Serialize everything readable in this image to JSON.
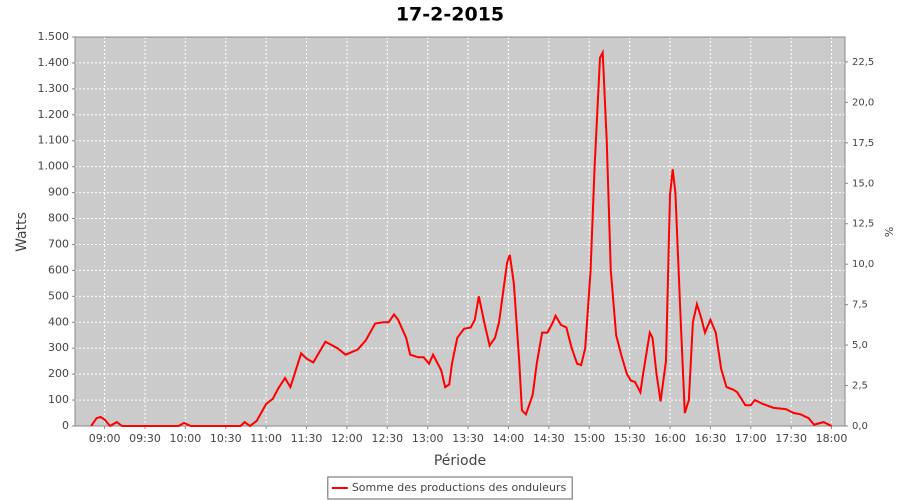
{
  "chart_data": {
    "type": "line",
    "title": "17-2-2015",
    "x_label": "Période",
    "y_label": "Watts",
    "y2_label": "%",
    "x": [
      "08:50",
      "08:54",
      "08:57",
      "09:00",
      "09:04",
      "09:09",
      "09:13",
      "09:55",
      "09:59",
      "10:04",
      "10:41",
      "10:44",
      "10:48",
      "10:53",
      "11:00",
      "11:05",
      "11:09",
      "11:14",
      "11:18",
      "11:26",
      "11:30",
      "11:35",
      "11:44",
      "11:53",
      "11:59",
      "12:08",
      "12:14",
      "12:21",
      "12:27",
      "12:31",
      "12:35",
      "12:38",
      "12:44",
      "12:47",
      "12:53",
      "12:57",
      "13:01",
      "13:04",
      "13:10",
      "13:13",
      "13:16",
      "13:18",
      "13:22",
      "13:27",
      "13:32",
      "13:35",
      "13:38",
      "13:42",
      "13:46",
      "13:50",
      "13:53",
      "13:59",
      "14:01",
      "14:04",
      "14:08",
      "14:10",
      "14:13",
      "14:18",
      "14:21",
      "14:25",
      "14:29",
      "14:33",
      "14:35",
      "14:39",
      "14:43",
      "14:47",
      "14:51",
      "14:54",
      "14:57",
      "15:01",
      "15:04",
      "15:08",
      "15:10",
      "15:13",
      "15:16",
      "15:20",
      "15:24",
      "15:28",
      "15:31",
      "15:34",
      "15:38",
      "15:40",
      "15:45",
      "15:47",
      "15:50",
      "15:53",
      "15:57",
      "16:00",
      "16:02",
      "16:04",
      "16:08",
      "16:11",
      "16:14",
      "16:17",
      "16:20",
      "16:23",
      "16:26",
      "16:30",
      "16:34",
      "16:38",
      "16:42",
      "16:47",
      "16:50",
      "16:56",
      "17:00",
      "17:03",
      "17:09",
      "17:17",
      "17:26",
      "17:32",
      "17:37",
      "17:43",
      "17:47",
      "17:54",
      "17:58",
      "18:00"
    ],
    "series": [
      {
        "name": "Somme des productions des onduleurs",
        "color": "#ff0000",
        "values": [
          0,
          30,
          35,
          25,
          0,
          15,
          0,
          0,
          12,
          0,
          0,
          15,
          0,
          20,
          85,
          105,
          145,
          185,
          150,
          280,
          260,
          245,
          325,
          300,
          275,
          295,
          330,
          395,
          400,
          400,
          430,
          410,
          340,
          275,
          265,
          265,
          240,
          275,
          215,
          150,
          160,
          240,
          340,
          375,
          380,
          410,
          500,
          400,
          310,
          340,
          400,
          630,
          660,
          550,
          250,
          60,
          45,
          120,
          240,
          360,
          360,
          400,
          425,
          390,
          380,
          300,
          240,
          235,
          300,
          600,
          1000,
          1420,
          1440,
          1100,
          600,
          350,
          270,
          200,
          175,
          170,
          130,
          200,
          360,
          340,
          200,
          95,
          250,
          890,
          990,
          900,
          400,
          50,
          100,
          400,
          470,
          420,
          360,
          410,
          360,
          220,
          150,
          140,
          130,
          80,
          80,
          100,
          85,
          70,
          65,
          50,
          45,
          30,
          5,
          15,
          5,
          0
        ]
      }
    ],
    "xlim": [
      "08:38",
      "18:10"
    ],
    "xticks": [
      "09:00",
      "09:30",
      "10:00",
      "10:30",
      "11:00",
      "11:30",
      "12:00",
      "12:30",
      "13:00",
      "13:30",
      "14:00",
      "14:30",
      "15:00",
      "15:30",
      "16:00",
      "16:30",
      "17:00",
      "17:30",
      "18:00"
    ],
    "ylim": [
      0,
      1500
    ],
    "yticks": [
      0,
      100,
      200,
      300,
      400,
      500,
      600,
      700,
      800,
      900,
      {
        "value": 1000,
        "label": "1.000"
      },
      {
        "value": 1100,
        "label": "1.100"
      },
      {
        "value": 1200,
        "label": "1.200"
      },
      {
        "value": 1300,
        "label": "1.300"
      },
      {
        "value": 1400,
        "label": "1.400"
      },
      {
        "value": 1500,
        "label": "1.500"
      }
    ],
    "y2lim": [
      0,
      24.04
    ],
    "y2ticks": [
      {
        "value": 0,
        "label": "0,0"
      },
      {
        "value": 2.5,
        "label": "2,5"
      },
      {
        "value": 5,
        "label": "5,0"
      },
      {
        "value": 7.5,
        "label": "7,5"
      },
      {
        "value": 10,
        "label": "10,0"
      },
      {
        "value": 12.5,
        "label": "12,5"
      },
      {
        "value": 15,
        "label": "15,0"
      },
      {
        "value": 17.5,
        "label": "17,5"
      },
      {
        "value": 20,
        "label": "20,0"
      },
      {
        "value": 22.5,
        "label": "22,5"
      }
    ],
    "grid": true,
    "legend": "bottom"
  }
}
